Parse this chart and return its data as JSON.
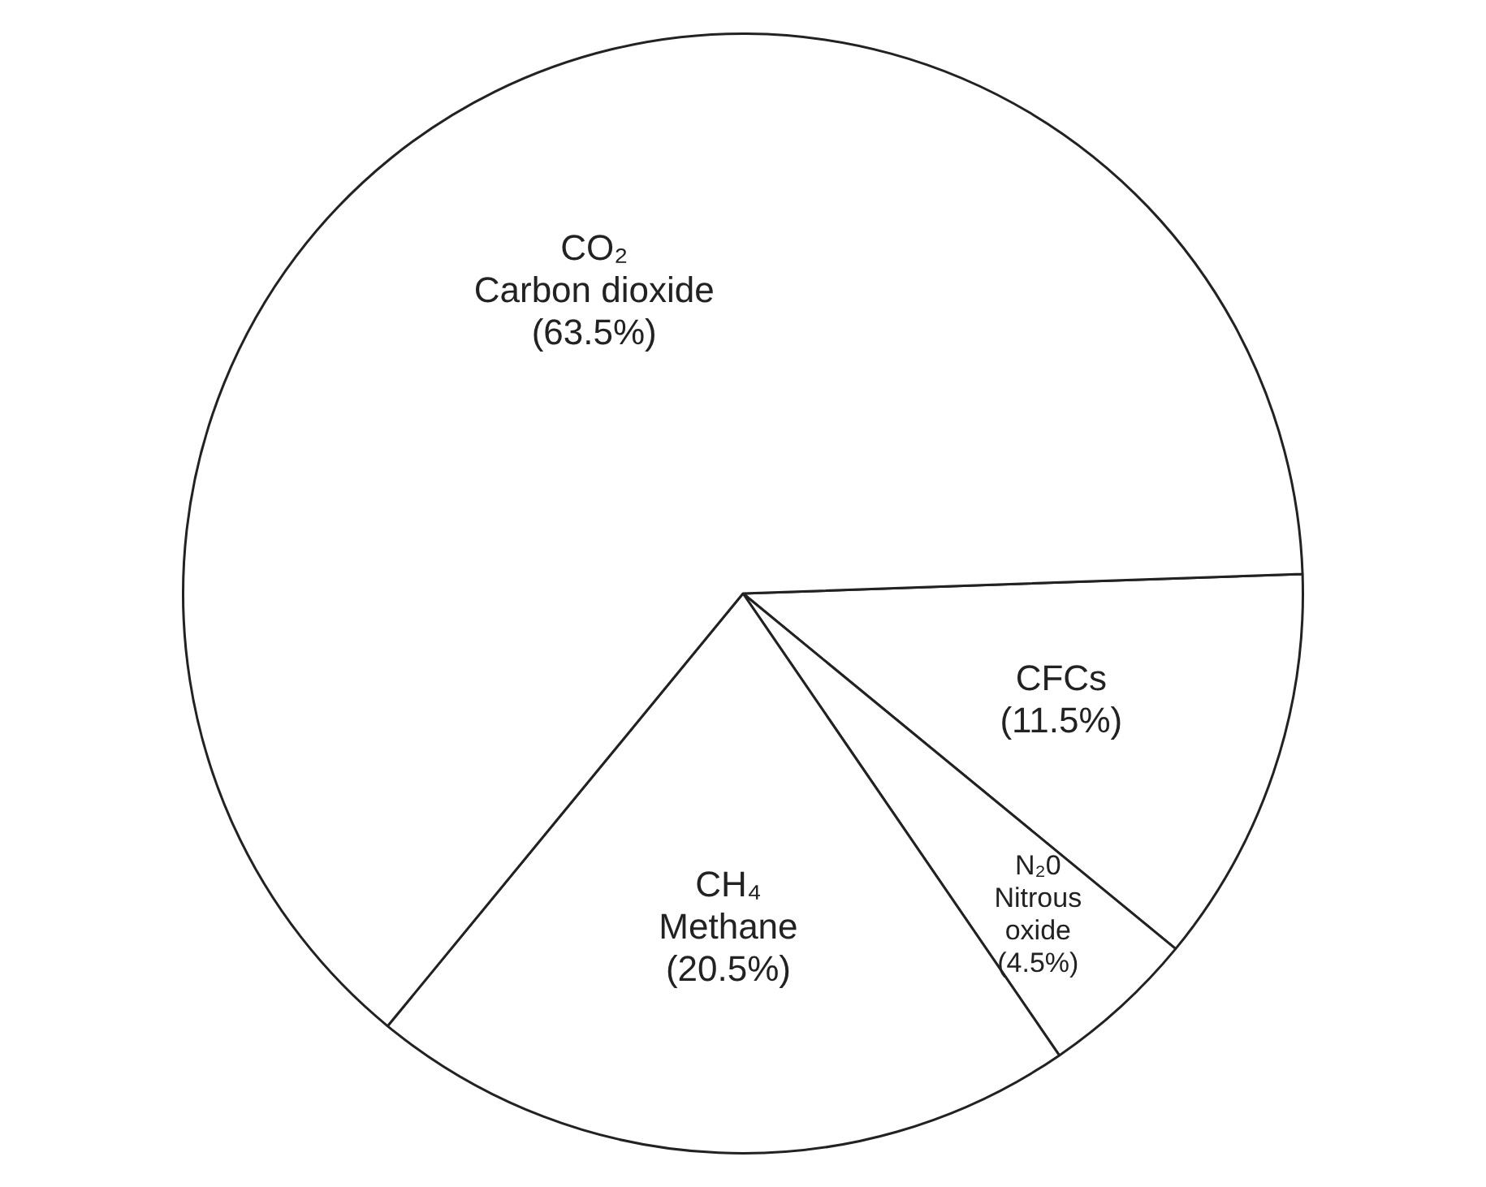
{
  "chart_data": {
    "type": "pie",
    "categories": [
      "CFCs",
      "N₂0\nNitrous\noxide",
      "CH₄\nMethane",
      "CO₂\nCarbon dioxide"
    ],
    "values": [
      11.5,
      4.5,
      20.5,
      63.5
    ],
    "colors": [
      "#ffffff",
      "#ffffff",
      "#ffffff",
      "#ffffff"
    ],
    "value_labels": [
      "(11.5%)",
      "(4.5%)",
      "(20.5%)",
      "(63.5%)"
    ],
    "legend": false
  }
}
